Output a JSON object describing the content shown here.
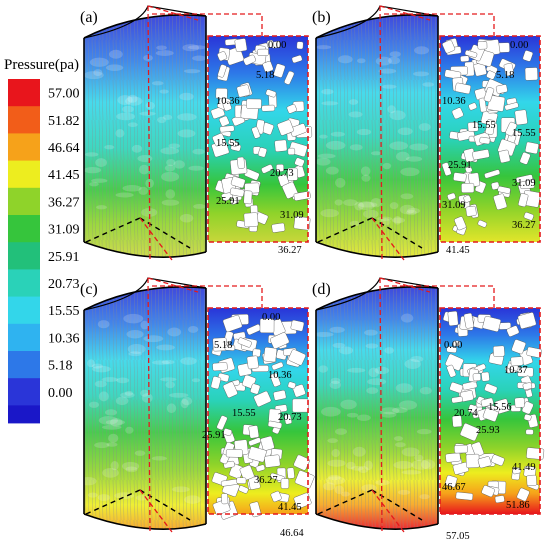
{
  "legend": {
    "title": "Pressure(pa)",
    "entries": [
      {
        "label": "57.00",
        "color": "#e8151c"
      },
      {
        "label": "51.82",
        "color": "#f25d19"
      },
      {
        "label": "46.64",
        "color": "#f6a21a"
      },
      {
        "label": "41.45",
        "color": "#eded1f"
      },
      {
        "label": "36.27",
        "color": "#8fd32a"
      },
      {
        "label": "31.09",
        "color": "#36c53c"
      },
      {
        "label": "25.91",
        "color": "#22c07a"
      },
      {
        "label": "20.73",
        "color": "#2ad2b8"
      },
      {
        "label": "15.55",
        "color": "#33d6ea"
      },
      {
        "label": "10.36",
        "color": "#2fb3f0"
      },
      {
        "label": "5.18",
        "color": "#2d78e8"
      },
      {
        "label": "0.00",
        "color": "#2a35d8"
      }
    ],
    "extra_swatch_color": "#1a17c8"
  },
  "panels": [
    {
      "tag": "(a)",
      "labels": [
        "0.00",
        "5.18",
        "10.36",
        "15.55",
        "20.73",
        "25.91",
        "31.09",
        "36.27"
      ],
      "max": 36.27
    },
    {
      "tag": "(b)",
      "labels": [
        "0.00",
        "5.18",
        "10.36",
        "15.55",
        "15.55",
        "25.91",
        "31.09",
        "31.09",
        "36.27",
        "41.45"
      ],
      "max": 41.45
    },
    {
      "tag": "(c)",
      "labels": [
        "0.00",
        "5.18",
        "10.36",
        "15.55",
        "20.73",
        "25.91",
        "36.27",
        "41.45",
        "46.64"
      ],
      "max": 46.64
    },
    {
      "tag": "(d)",
      "labels": [
        "0.00",
        "10.37",
        "15.56",
        "20.74",
        "25.93",
        "41.49",
        "46.67",
        "51.86",
        "57.05"
      ],
      "max": 57.05
    }
  ],
  "colors": {
    "accent_dashed": "#e41a1c",
    "outline": "#000000"
  }
}
